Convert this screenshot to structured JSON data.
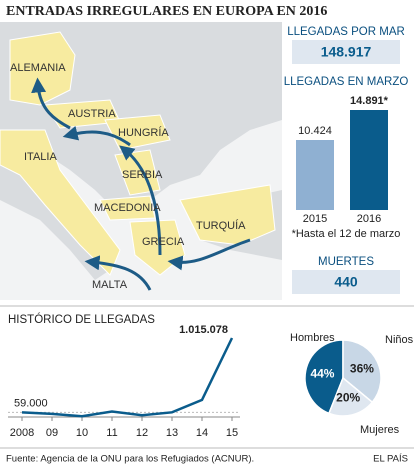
{
  "title": "ENTRADAS IRREGULARES EN EUROPA EN 2016",
  "map": {
    "labels": [
      "ALEMANIA",
      "AUSTRIA",
      "HUNGRÍA",
      "ITALIA",
      "SERBIA",
      "MACEDONIA",
      "TURQUÍA",
      "GRECIA",
      "MALTA"
    ]
  },
  "stats": [
    {
      "label": "LLEGADAS POR MAR",
      "value": "148.917"
    },
    {
      "label": "MUERTES",
      "value": "440"
    }
  ],
  "chart_data": [
    {
      "type": "bar",
      "title": "LLEGADAS EN MARZO",
      "categories": [
        "2015",
        "2016"
      ],
      "values": [
        10424,
        14891
      ],
      "value_labels": [
        "10.424",
        "14.891*"
      ],
      "colors": [
        "#8fb0d2",
        "#0a5c8c"
      ],
      "note": "*Hasta el 12 de marzo"
    },
    {
      "type": "line",
      "title": "HISTÓRICO DE LLEGADAS",
      "categories": [
        "2008",
        "09",
        "10",
        "11",
        "12",
        "13",
        "14",
        "15"
      ],
      "values": [
        59000,
        40000,
        10000,
        70000,
        22000,
        60000,
        220000,
        1015078
      ],
      "value_labels": [
        "59.000",
        null,
        null,
        null,
        null,
        null,
        null,
        "1.015.078"
      ],
      "color": "#0a5c8c"
    },
    {
      "type": "pie",
      "categories": [
        "Hombres",
        "Niños",
        "Mujeres"
      ],
      "values": [
        44,
        36,
        20
      ],
      "value_labels": [
        "44%",
        "36%",
        "20%"
      ],
      "colors": [
        "#0a5c8c",
        "#c8d7e6",
        "#dfe7f0"
      ]
    }
  ],
  "source": "Fuente: Agencia de la ONU para los Refugiados (ACNUR).",
  "credit": "EL PAÍS"
}
